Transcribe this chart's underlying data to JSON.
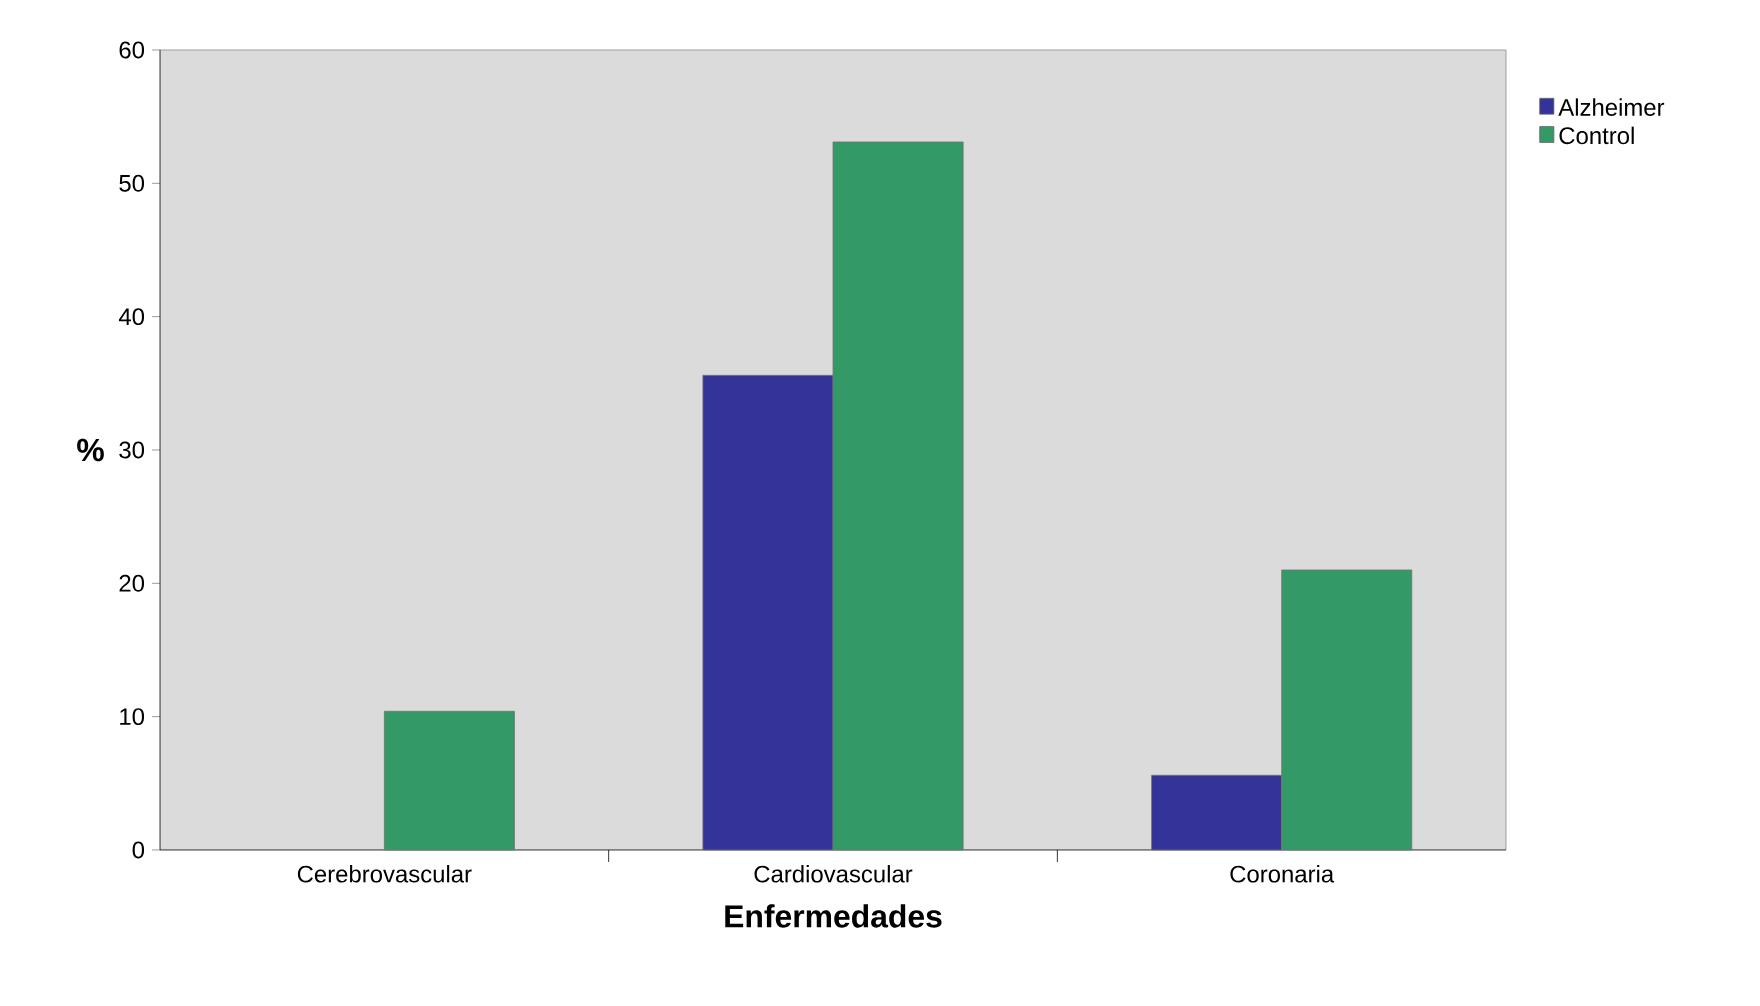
{
  "chart_data": {
    "type": "bar",
    "xlabel": "Enfermedades",
    "ylabel": "%",
    "categories": [
      "Cerebrovascular",
      "Cardiovascular",
      "Coronaria"
    ],
    "series": [
      {
        "name": "Alzheimer",
        "color": "#333399",
        "values": [
          null,
          35.6,
          5.6
        ]
      },
      {
        "name": "Control",
        "color": "#339966",
        "values": [
          10.4,
          53.1,
          21.0
        ]
      }
    ],
    "ylim": [
      0,
      60
    ],
    "yticks": [
      0,
      10,
      20,
      30,
      40,
      50,
      60
    ],
    "grid": false,
    "legend": "top right"
  }
}
